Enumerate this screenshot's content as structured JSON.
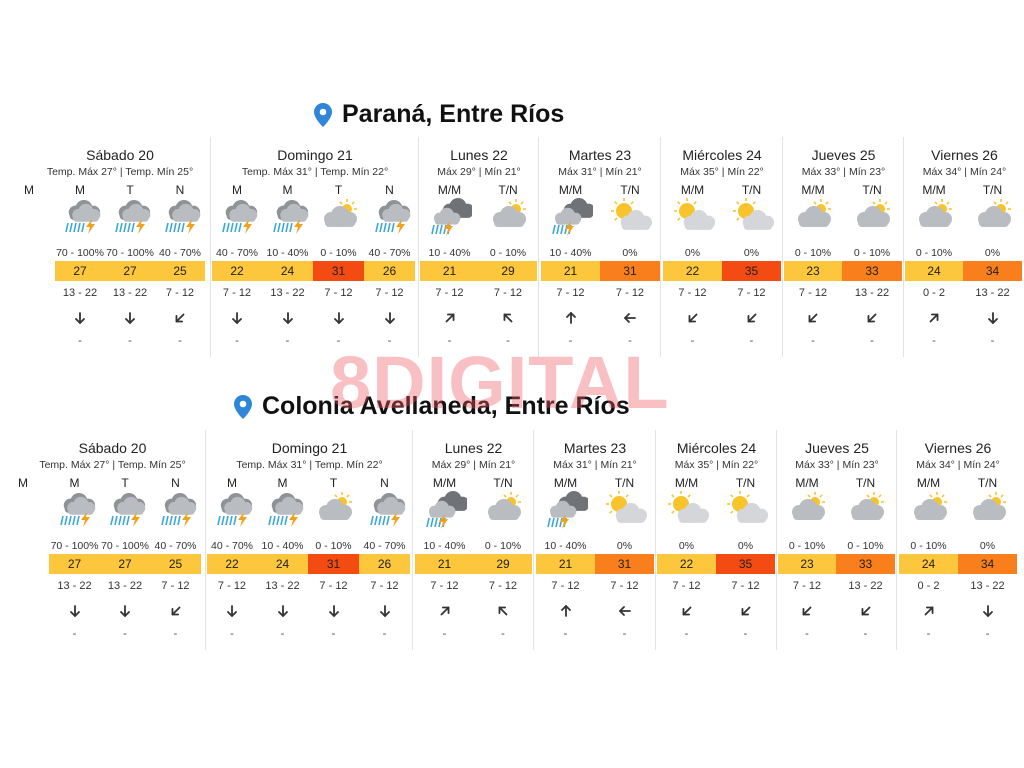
{
  "watermark": "8DIGITAL",
  "colors": {
    "yellow": "#fcc63d",
    "orange": "#f97f1c",
    "red": "#f34b12",
    "cloud": "#b9bcc0",
    "dark_cloud": "#8f9398",
    "sun": "#f8c42c",
    "rain": "#3aa7d8",
    "bolt": "#f0a21f"
  },
  "locations": [
    {
      "name": "Paraná, Entre Ríos",
      "lone_label": "M",
      "days": [
        {
          "name": "Sábado 20",
          "sub": "Temp. Máx 27° | Temp. Mín 25°",
          "cols": [
            {
              "label": "M",
              "icon": "storm-icon",
              "precip": "70 - 100%",
              "temp": "27",
              "level": "yellow",
              "wind": "13 - 22",
              "dir": 180,
              "gust": "-"
            },
            {
              "label": "T",
              "icon": "storm-icon",
              "precip": "70 - 100%",
              "temp": "27",
              "level": "yellow",
              "wind": "13 - 22",
              "dir": 180,
              "gust": "-"
            },
            {
              "label": "N",
              "icon": "storm-icon",
              "precip": "40 - 70%",
              "temp": "25",
              "level": "yellow",
              "wind": "7 - 12",
              "dir": 225,
              "gust": "-"
            }
          ]
        },
        {
          "name": "Domingo 21",
          "sub": "Temp. Máx 31° | Temp. Mín 22°",
          "cols": [
            {
              "label": "M",
              "icon": "storm-icon",
              "precip": "40 - 70%",
              "temp": "22",
              "level": "yellow",
              "wind": "7 - 12",
              "dir": 180,
              "gust": "-"
            },
            {
              "label": "M",
              "icon": "storm-icon",
              "precip": "10 - 40%",
              "temp": "24",
              "level": "yellow",
              "wind": "13 - 22",
              "dir": 180,
              "gust": "-"
            },
            {
              "label": "T",
              "icon": "cloudy-sun-icon",
              "precip": "0 - 10%",
              "temp": "31",
              "level": "red",
              "wind": "7 - 12",
              "dir": 180,
              "gust": "-"
            },
            {
              "label": "N",
              "icon": "storm-icon",
              "precip": "40 - 70%",
              "temp": "26",
              "level": "yellow",
              "wind": "7 - 12",
              "dir": 180,
              "gust": "-"
            }
          ]
        },
        {
          "name": "Lunes 22",
          "sub": "Máx 29° | Mín 21°",
          "cols": [
            {
              "label": "M/M",
              "icon": "dark-storm-icon",
              "precip": "10 - 40%",
              "temp": "21",
              "level": "yellow",
              "wind": "7 - 12",
              "dir": 45,
              "gust": "-"
            },
            {
              "label": "T/N",
              "icon": "cloudy-sun-icon",
              "precip": "0 - 10%",
              "temp": "29",
              "level": "yellow",
              "wind": "7 - 12",
              "dir": 315,
              "gust": "-"
            }
          ]
        },
        {
          "name": "Martes 23",
          "sub": "Máx 31° | Mín 21°",
          "cols": [
            {
              "label": "M/M",
              "icon": "dark-storm-icon",
              "precip": "10 - 40%",
              "temp": "21",
              "level": "yellow",
              "wind": "7 - 12",
              "dir": 0,
              "gust": "-"
            },
            {
              "label": "T/N",
              "icon": "sun-cloud-icon",
              "precip": "0%",
              "temp": "31",
              "level": "orange",
              "wind": "7 - 12",
              "dir": 270,
              "gust": "-"
            }
          ]
        },
        {
          "name": "Miércoles 24",
          "sub": "Máx 35° | Mín 22°",
          "cols": [
            {
              "label": "M/M",
              "icon": "sun-cloud-icon",
              "precip": "0%",
              "temp": "22",
              "level": "yellow",
              "wind": "7 - 12",
              "dir": 225,
              "gust": "-"
            },
            {
              "label": "T/N",
              "icon": "sun-cloud-icon",
              "precip": "0%",
              "temp": "35",
              "level": "red",
              "wind": "7 - 12",
              "dir": 225,
              "gust": "-"
            }
          ]
        },
        {
          "name": "Jueves 25",
          "sub": "Máx 33° | Mín 23°",
          "cols": [
            {
              "label": "M/M",
              "icon": "cloudy-sun-icon",
              "precip": "0 - 10%",
              "temp": "23",
              "level": "yellow",
              "wind": "7 - 12",
              "dir": 225,
              "gust": "-"
            },
            {
              "label": "T/N",
              "icon": "cloudy-sun-icon",
              "precip": "0 - 10%",
              "temp": "33",
              "level": "orange",
              "wind": "13 - 22",
              "dir": 225,
              "gust": "-"
            }
          ]
        },
        {
          "name": "Viernes 26",
          "sub": "Máx 34° | Mín 24°",
          "cols": [
            {
              "label": "M/M",
              "icon": "cloudy-sun-icon",
              "precip": "0 - 10%",
              "temp": "24",
              "level": "yellow",
              "wind": "0 - 2",
              "dir": 45,
              "gust": "-"
            },
            {
              "label": "T/N",
              "icon": "cloudy-sun-icon",
              "precip": "0%",
              "temp": "34",
              "level": "orange",
              "wind": "13 - 22",
              "dir": 180,
              "gust": "-"
            }
          ]
        }
      ]
    },
    {
      "name": "Colonia Avellaneda, Entre Ríos",
      "lone_label": "M",
      "days": [
        {
          "name": "Sábado 20",
          "sub": "Temp. Máx 27° | Temp. Mín 25°",
          "cols": [
            {
              "label": "M",
              "icon": "storm-icon",
              "precip": "70 - 100%",
              "temp": "27",
              "level": "yellow",
              "wind": "13 - 22",
              "dir": 180,
              "gust": "-"
            },
            {
              "label": "T",
              "icon": "storm-icon",
              "precip": "70 - 100%",
              "temp": "27",
              "level": "yellow",
              "wind": "13 - 22",
              "dir": 180,
              "gust": "-"
            },
            {
              "label": "N",
              "icon": "storm-icon",
              "precip": "40 - 70%",
              "temp": "25",
              "level": "yellow",
              "wind": "7 - 12",
              "dir": 225,
              "gust": "-"
            }
          ]
        },
        {
          "name": "Domingo 21",
          "sub": "Temp. Máx 31° | Temp. Mín 22°",
          "cols": [
            {
              "label": "M",
              "icon": "storm-icon",
              "precip": "40 - 70%",
              "temp": "22",
              "level": "yellow",
              "wind": "7 - 12",
              "dir": 180,
              "gust": "-"
            },
            {
              "label": "M",
              "icon": "storm-icon",
              "precip": "10 - 40%",
              "temp": "24",
              "level": "yellow",
              "wind": "13 - 22",
              "dir": 180,
              "gust": "-"
            },
            {
              "label": "T",
              "icon": "cloudy-sun-icon",
              "precip": "0 - 10%",
              "temp": "31",
              "level": "red",
              "wind": "7 - 12",
              "dir": 180,
              "gust": "-"
            },
            {
              "label": "N",
              "icon": "storm-icon",
              "precip": "40 - 70%",
              "temp": "26",
              "level": "yellow",
              "wind": "7 - 12",
              "dir": 180,
              "gust": "-"
            }
          ]
        },
        {
          "name": "Lunes 22",
          "sub": "Máx 29° | Mín 21°",
          "cols": [
            {
              "label": "M/M",
              "icon": "dark-storm-icon",
              "precip": "10 - 40%",
              "temp": "21",
              "level": "yellow",
              "wind": "7 - 12",
              "dir": 45,
              "gust": "-"
            },
            {
              "label": "T/N",
              "icon": "cloudy-sun-icon",
              "precip": "0 - 10%",
              "temp": "29",
              "level": "yellow",
              "wind": "7 - 12",
              "dir": 315,
              "gust": "-"
            }
          ]
        },
        {
          "name": "Martes 23",
          "sub": "Máx 31° | Mín 21°",
          "cols": [
            {
              "label": "M/M",
              "icon": "dark-storm-icon",
              "precip": "10 - 40%",
              "temp": "21",
              "level": "yellow",
              "wind": "7 - 12",
              "dir": 0,
              "gust": "-"
            },
            {
              "label": "T/N",
              "icon": "sun-cloud-icon",
              "precip": "0%",
              "temp": "31",
              "level": "orange",
              "wind": "7 - 12",
              "dir": 270,
              "gust": "-"
            }
          ]
        },
        {
          "name": "Miércoles 24",
          "sub": "Máx 35° | Mín 22°",
          "cols": [
            {
              "label": "M/M",
              "icon": "sun-cloud-icon",
              "precip": "0%",
              "temp": "22",
              "level": "yellow",
              "wind": "7 - 12",
              "dir": 225,
              "gust": "-"
            },
            {
              "label": "T/N",
              "icon": "sun-cloud-icon",
              "precip": "0%",
              "temp": "35",
              "level": "red",
              "wind": "7 - 12",
              "dir": 225,
              "gust": "-"
            }
          ]
        },
        {
          "name": "Jueves 25",
          "sub": "Máx 33° | Mín 23°",
          "cols": [
            {
              "label": "M/M",
              "icon": "cloudy-sun-icon",
              "precip": "0 - 10%",
              "temp": "23",
              "level": "yellow",
              "wind": "7 - 12",
              "dir": 225,
              "gust": "-"
            },
            {
              "label": "T/N",
              "icon": "cloudy-sun-icon",
              "precip": "0 - 10%",
              "temp": "33",
              "level": "orange",
              "wind": "13 - 22",
              "dir": 225,
              "gust": "-"
            }
          ]
        },
        {
          "name": "Viernes 26",
          "sub": "Máx 34° | Mín 24°",
          "cols": [
            {
              "label": "M/M",
              "icon": "cloudy-sun-icon",
              "precip": "0 - 10%",
              "temp": "24",
              "level": "yellow",
              "wind": "0 - 2",
              "dir": 45,
              "gust": "-"
            },
            {
              "label": "T/N",
              "icon": "cloudy-sun-icon",
              "precip": "0%",
              "temp": "34",
              "level": "orange",
              "wind": "13 - 22",
              "dir": 180,
              "gust": "-"
            }
          ]
        }
      ]
    }
  ]
}
